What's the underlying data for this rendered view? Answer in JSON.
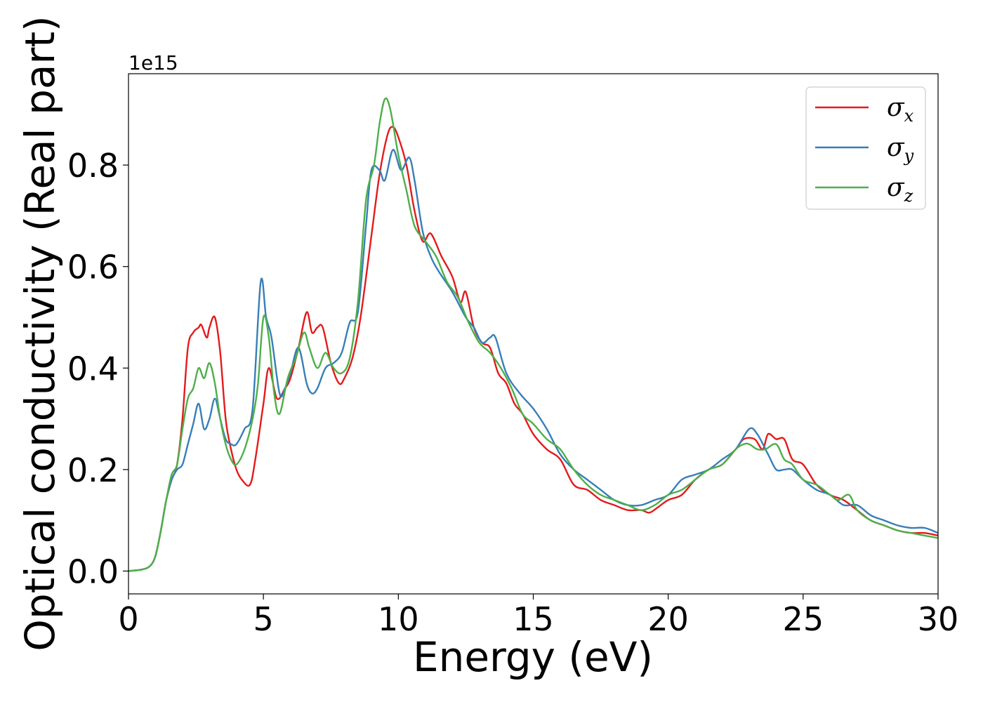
{
  "chart_data": {
    "type": "line",
    "title": "",
    "xlabel": "Energy (eV)",
    "ylabel": "Optical conductivity (Real part)",
    "y_offset_label": "1e15",
    "xlim": [
      0,
      30
    ],
    "ylim": [
      -0.045,
      0.98
    ],
    "xticks": [
      0,
      5,
      10,
      15,
      20,
      25,
      30
    ],
    "xtick_labels": [
      "0",
      "5",
      "10",
      "15",
      "20",
      "25",
      "30"
    ],
    "yticks": [
      0.0,
      0.2,
      0.4,
      0.6,
      0.8
    ],
    "ytick_labels": [
      "0.0",
      "0.2",
      "0.4",
      "0.6",
      "0.8"
    ],
    "grid": false,
    "legend_position": "top-right",
    "series": [
      {
        "name": "σx",
        "legend_base": "σ",
        "legend_sub": "x",
        "color": "#e41a1c",
        "x": [
          0,
          0.5,
          0.8,
          1.0,
          1.2,
          1.4,
          1.6,
          1.8,
          2.0,
          2.2,
          2.4,
          2.6,
          2.7,
          2.9,
          3.0,
          3.2,
          3.4,
          3.6,
          3.8,
          4.0,
          4.2,
          4.5,
          4.7,
          5.0,
          5.2,
          5.5,
          5.8,
          6.0,
          6.3,
          6.6,
          6.8,
          7.0,
          7.2,
          7.5,
          7.8,
          8.0,
          8.3,
          8.6,
          9.0,
          9.3,
          9.6,
          9.8,
          10.0,
          10.3,
          10.6,
          10.9,
          11.2,
          11.6,
          12.0,
          12.3,
          12.5,
          12.8,
          13.1,
          13.4,
          13.7,
          14.0,
          14.3,
          14.6,
          15.0,
          15.5,
          16.0,
          16.5,
          17.0,
          17.5,
          18.0,
          18.5,
          19.0,
          19.3,
          19.6,
          20.0,
          20.5,
          21.0,
          21.5,
          22.0,
          22.5,
          22.8,
          23.2,
          23.5,
          23.7,
          24.0,
          24.3,
          24.6,
          25.0,
          25.5,
          26.0,
          26.5,
          27.0,
          27.5,
          28.0,
          28.5,
          29.0,
          29.5,
          30.0
        ],
        "y": [
          0.0,
          0.003,
          0.01,
          0.03,
          0.08,
          0.14,
          0.18,
          0.21,
          0.3,
          0.44,
          0.47,
          0.48,
          0.485,
          0.46,
          0.48,
          0.5,
          0.43,
          0.3,
          0.24,
          0.2,
          0.18,
          0.17,
          0.22,
          0.33,
          0.4,
          0.34,
          0.36,
          0.38,
          0.44,
          0.51,
          0.47,
          0.48,
          0.48,
          0.41,
          0.37,
          0.38,
          0.42,
          0.5,
          0.66,
          0.78,
          0.86,
          0.875,
          0.855,
          0.8,
          0.71,
          0.65,
          0.665,
          0.62,
          0.58,
          0.53,
          0.55,
          0.48,
          0.45,
          0.44,
          0.39,
          0.37,
          0.33,
          0.31,
          0.27,
          0.24,
          0.22,
          0.17,
          0.16,
          0.14,
          0.13,
          0.12,
          0.12,
          0.115,
          0.125,
          0.14,
          0.15,
          0.18,
          0.2,
          0.21,
          0.24,
          0.26,
          0.26,
          0.24,
          0.27,
          0.26,
          0.26,
          0.22,
          0.21,
          0.17,
          0.15,
          0.14,
          0.12,
          0.1,
          0.09,
          0.08,
          0.075,
          0.075,
          0.07
        ]
      },
      {
        "name": "σy",
        "legend_base": "σ",
        "legend_sub": "y",
        "color": "#377eb8",
        "x": [
          0,
          0.5,
          0.8,
          1.0,
          1.2,
          1.4,
          1.6,
          1.8,
          2.0,
          2.2,
          2.4,
          2.6,
          2.8,
          3.0,
          3.2,
          3.4,
          3.6,
          3.8,
          4.0,
          4.3,
          4.6,
          4.9,
          5.1,
          5.3,
          5.6,
          5.8,
          6.0,
          6.3,
          6.6,
          6.8,
          7.0,
          7.3,
          7.6,
          7.9,
          8.2,
          8.5,
          8.8,
          9.0,
          9.3,
          9.5,
          9.8,
          10.1,
          10.4,
          10.6,
          10.9,
          11.2,
          11.5,
          12.0,
          12.5,
          12.8,
          13.1,
          13.4,
          13.6,
          14.0,
          14.5,
          15.0,
          15.5,
          16.0,
          16.5,
          17.0,
          17.5,
          18.0,
          18.5,
          19.0,
          19.5,
          20.0,
          20.5,
          21.0,
          21.5,
          22.0,
          22.5,
          23.0,
          23.3,
          23.7,
          24.0,
          24.3,
          24.6,
          25.0,
          25.5,
          26.0,
          26.5,
          27.0,
          27.5,
          28.0,
          28.5,
          29.0,
          29.5,
          30.0
        ],
        "y": [
          0.0,
          0.003,
          0.01,
          0.03,
          0.08,
          0.14,
          0.18,
          0.2,
          0.21,
          0.25,
          0.29,
          0.33,
          0.28,
          0.3,
          0.34,
          0.3,
          0.26,
          0.25,
          0.25,
          0.28,
          0.32,
          0.57,
          0.5,
          0.46,
          0.35,
          0.36,
          0.39,
          0.44,
          0.37,
          0.35,
          0.36,
          0.4,
          0.41,
          0.43,
          0.49,
          0.51,
          0.68,
          0.79,
          0.79,
          0.77,
          0.83,
          0.79,
          0.815,
          0.77,
          0.67,
          0.62,
          0.59,
          0.55,
          0.5,
          0.48,
          0.45,
          0.46,
          0.46,
          0.39,
          0.35,
          0.32,
          0.28,
          0.23,
          0.2,
          0.18,
          0.16,
          0.14,
          0.13,
          0.13,
          0.14,
          0.15,
          0.18,
          0.19,
          0.2,
          0.22,
          0.24,
          0.28,
          0.27,
          0.23,
          0.2,
          0.2,
          0.2,
          0.18,
          0.16,
          0.15,
          0.13,
          0.13,
          0.11,
          0.1,
          0.09,
          0.085,
          0.085,
          0.075
        ]
      },
      {
        "name": "σz",
        "legend_base": "σ",
        "legend_sub": "z",
        "color": "#4daf4a",
        "x": [
          0,
          0.5,
          0.8,
          1.0,
          1.2,
          1.4,
          1.6,
          1.8,
          2.0,
          2.2,
          2.4,
          2.6,
          2.8,
          3.0,
          3.2,
          3.4,
          3.6,
          3.8,
          4.0,
          4.3,
          4.6,
          4.8,
          5.0,
          5.2,
          5.4,
          5.6,
          5.9,
          6.2,
          6.5,
          6.7,
          7.0,
          7.3,
          7.6,
          7.9,
          8.2,
          8.5,
          8.8,
          9.1,
          9.3,
          9.5,
          9.7,
          10.0,
          10.3,
          10.6,
          11.0,
          11.4,
          11.8,
          12.2,
          12.6,
          13.0,
          13.4,
          13.8,
          14.2,
          14.6,
          15.0,
          15.5,
          16.0,
          16.5,
          17.0,
          17.5,
          18.0,
          18.5,
          19.0,
          19.5,
          20.0,
          20.5,
          21.0,
          21.5,
          22.0,
          22.5,
          22.8,
          23.0,
          23.3,
          23.6,
          24.0,
          24.3,
          24.6,
          25.0,
          25.5,
          26.0,
          26.3,
          26.7,
          27.0,
          27.5,
          28.0,
          28.5,
          29.0,
          29.5,
          30.0
        ],
        "y": [
          0.0,
          0.003,
          0.01,
          0.03,
          0.08,
          0.14,
          0.19,
          0.21,
          0.28,
          0.34,
          0.36,
          0.4,
          0.38,
          0.41,
          0.37,
          0.3,
          0.25,
          0.22,
          0.21,
          0.24,
          0.3,
          0.37,
          0.5,
          0.46,
          0.35,
          0.31,
          0.38,
          0.42,
          0.47,
          0.44,
          0.4,
          0.43,
          0.4,
          0.39,
          0.42,
          0.53,
          0.73,
          0.8,
          0.88,
          0.93,
          0.91,
          0.82,
          0.75,
          0.68,
          0.65,
          0.62,
          0.57,
          0.54,
          0.49,
          0.45,
          0.43,
          0.4,
          0.36,
          0.31,
          0.29,
          0.26,
          0.24,
          0.2,
          0.17,
          0.15,
          0.14,
          0.13,
          0.12,
          0.13,
          0.15,
          0.16,
          0.18,
          0.2,
          0.21,
          0.24,
          0.25,
          0.25,
          0.24,
          0.24,
          0.25,
          0.22,
          0.21,
          0.18,
          0.17,
          0.15,
          0.14,
          0.15,
          0.12,
          0.1,
          0.09,
          0.08,
          0.075,
          0.07,
          0.065
        ]
      }
    ]
  }
}
